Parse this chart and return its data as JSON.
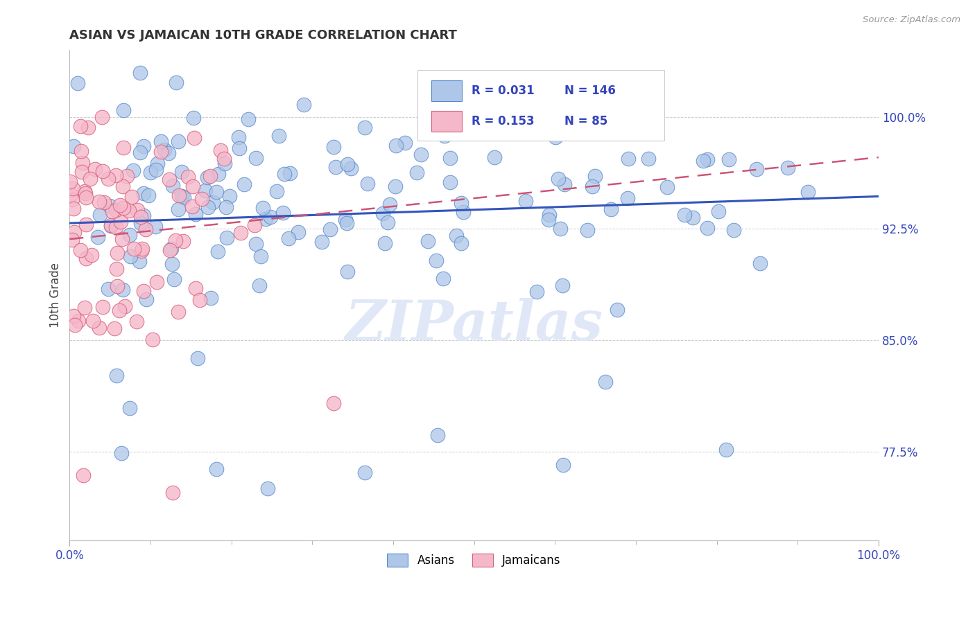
{
  "title": "ASIAN VS JAMAICAN 10TH GRADE CORRELATION CHART",
  "source": "Source: ZipAtlas.com",
  "ylabel": "10th Grade",
  "xlim": [
    0.0,
    1.0
  ],
  "ylim": [
    0.715,
    1.045
  ],
  "yticks": [
    0.775,
    0.85,
    0.925,
    1.0
  ],
  "ytick_labels": [
    "77.5%",
    "85.0%",
    "92.5%",
    "100.0%"
  ],
  "asian_R": 0.031,
  "asian_N": 146,
  "jamaican_R": 0.153,
  "jamaican_N": 85,
  "asian_face_color": "#aec6e8",
  "asian_edge_color": "#5588cc",
  "jamaican_face_color": "#f5b8cb",
  "jamaican_edge_color": "#d9607a",
  "trend_blue": "#3355bb",
  "trend_pink": "#cc5577",
  "background_color": "#ffffff",
  "grid_color": "#cccccc",
  "tick_color": "#3344bb",
  "title_color": "#333333",
  "watermark_color": "#e0e8f8",
  "legend_labels": [
    "Asians",
    "Jamaicans"
  ]
}
